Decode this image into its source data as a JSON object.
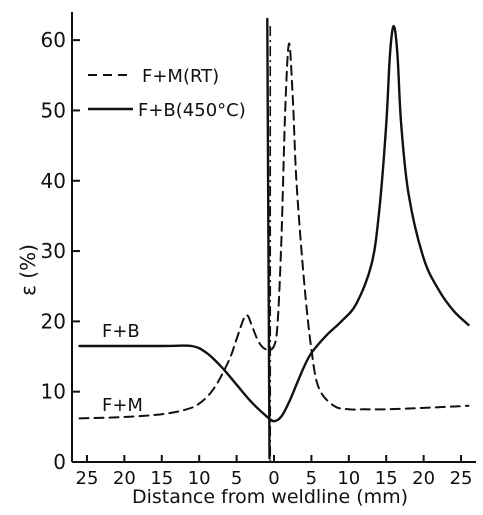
{
  "chart_data": {
    "type": "line",
    "xlabel": "Distance from weldline (mm)",
    "ylabel": "ε (%)",
    "x_ticks": [
      -25,
      -20,
      -15,
      -10,
      -5,
      0,
      5,
      10,
      15,
      20,
      25
    ],
    "x_tick_labels": [
      "25",
      "20",
      "15",
      "10",
      "5",
      "0",
      "5",
      "10",
      "15",
      "20",
      "25"
    ],
    "y_ticks": [
      0,
      10,
      20,
      30,
      40,
      50,
      60
    ],
    "y_tick_labels": [
      "0",
      "10",
      "20",
      "30",
      "40",
      "50",
      "60"
    ],
    "xlim": [
      -27,
      27
    ],
    "ylim": [
      0,
      64
    ],
    "legend": {
      "position": "top-center",
      "entries": [
        {
          "label": "F+M(RT)",
          "style": "dashed"
        },
        {
          "label": "F+B(450°C)",
          "style": "solid"
        }
      ]
    },
    "annotations": [
      {
        "text": "F+B",
        "x": -21,
        "y": 21
      },
      {
        "text": "F+M",
        "x": -21,
        "y": 9.5
      }
    ],
    "weldline": {
      "x": -0.5,
      "style": "dash-dot"
    },
    "series": [
      {
        "label": "F+M(RT)",
        "style": "dashed",
        "x": [
          -26,
          -20,
          -15,
          -12,
          -10,
          -8,
          -6,
          -5,
          -4,
          -3.5,
          -3,
          -2,
          -1,
          0,
          0.5,
          1,
          1.5,
          2,
          2.5,
          3,
          4,
          5,
          6,
          8,
          10,
          12,
          15,
          20,
          26
        ],
        "y": [
          6.2,
          6.4,
          6.8,
          7.4,
          8.3,
          10.5,
          14.5,
          17.5,
          20.5,
          20.8,
          19.5,
          17.0,
          16.0,
          16.5,
          20,
          32,
          50,
          59.5,
          52,
          40,
          26,
          16,
          10.5,
          8.0,
          7.5,
          7.5,
          7.5,
          7.7,
          8.0
        ]
      },
      {
        "label": "F+B(450°C)",
        "style": "solid",
        "x": [
          -26,
          -15,
          -11,
          -9,
          -7,
          -5,
          -3,
          -1,
          0,
          1,
          2,
          3,
          4,
          5,
          7,
          9,
          11,
          13,
          14,
          15,
          15.5,
          16,
          16.5,
          17,
          18,
          20,
          22,
          24,
          26
        ],
        "y": [
          16.5,
          16.5,
          16.5,
          15.5,
          13.5,
          11.0,
          8.5,
          6.5,
          5.8,
          6.5,
          8.5,
          11.0,
          13.5,
          15.5,
          18.0,
          20.0,
          22.5,
          28,
          35,
          48,
          58,
          62,
          58,
          48,
          38,
          29,
          24.5,
          21.5,
          19.5
        ]
      },
      {
        "label": "F+B(450°C) spike",
        "style": "solid",
        "x": [
          -0.9,
          -0.6
        ],
        "y": [
          63,
          0.5
        ]
      }
    ]
  }
}
